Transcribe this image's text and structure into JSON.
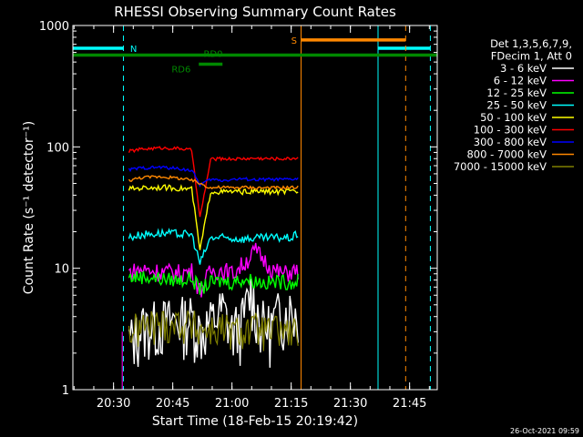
{
  "chart_data": {
    "type": "line",
    "title": "RHESSI Observing Summary Count Rates",
    "xlabel": "Start Time (18-Feb-15 20:19:42)",
    "ylabel": "Count Rate (s⁻¹ detector⁻¹)",
    "y_scale": "log",
    "ylim": [
      1,
      1000
    ],
    "xlim": [
      20.3283,
      21.8667
    ],
    "x_ticks": [
      {
        "x": 20.5,
        "label": "20:30"
      },
      {
        "x": 20.75,
        "label": "20:45"
      },
      {
        "x": 21.0,
        "label": "21:00"
      },
      {
        "x": 21.25,
        "label": "21:15"
      },
      {
        "x": 21.5,
        "label": "21:30"
      },
      {
        "x": 21.75,
        "label": "21:45"
      }
    ],
    "y_ticks": [
      {
        "y": 1,
        "label": "1"
      },
      {
        "y": 10,
        "label": "10"
      },
      {
        "y": 100,
        "label": "100"
      },
      {
        "y": 1000,
        "label": "1000"
      }
    ],
    "legend_header": [
      "Det 1,3,5,6,7,9,",
      "FDecim 1, Att 0"
    ],
    "legend_placement": "right",
    "series": [
      {
        "name": "3 - 6 keV",
        "color": "#ffffff",
        "segments": [
          {
            "x": [
              20.565,
              20.62,
              20.7,
              20.78,
              20.83,
              20.865,
              20.91,
              20.96,
              21.0,
              21.04,
              21.08,
              21.12,
              21.16,
              21.2,
              21.25,
              21.285
            ],
            "y": [
              2.5,
              3.3,
              3.6,
              3.8,
              3.9,
              3.1,
              3.6,
              4.6,
              3.1,
              3.5,
              6.5,
              3.6,
              3.3,
              4.3,
              4.6,
              4.2
            ]
          }
        ]
      },
      {
        "name": "6 - 12 keV",
        "color": "#ff00ff",
        "segments": [
          {
            "x": [
              20.565,
              20.62,
              20.7,
              20.78,
              20.83,
              20.865,
              20.91,
              20.96,
              21.0,
              21.05,
              21.1,
              21.14,
              21.18,
              21.22,
              21.25,
              21.285
            ],
            "y": [
              9.3,
              9.8,
              9.4,
              9.2,
              9.5,
              6.6,
              9.5,
              9.8,
              9.0,
              11.0,
              14.0,
              11.5,
              9.5,
              9.0,
              9.5,
              9.3
            ]
          }
        ]
      },
      {
        "name": "12 - 25 keV",
        "color": "#00ff00",
        "segments": [
          {
            "x": [
              20.565,
              20.62,
              20.7,
              20.78,
              20.83,
              20.865,
              20.91,
              20.96,
              21.0,
              21.05,
              21.1,
              21.15,
              21.2,
              21.25,
              21.285
            ],
            "y": [
              8.4,
              8.6,
              8.2,
              8.0,
              8.3,
              6.8,
              7.6,
              7.9,
              7.7,
              8.2,
              7.9,
              7.6,
              7.8,
              7.7,
              7.9
            ]
          }
        ]
      },
      {
        "name": "25 - 50 keV",
        "color": "#00ffff",
        "segments": [
          {
            "x": [
              20.565,
              20.62,
              20.7,
              20.78,
              20.83,
              20.865,
              20.91,
              20.96,
              21.0,
              21.05,
              21.1,
              21.15,
              21.2,
              21.25,
              21.285
            ],
            "y": [
              18.0,
              19.0,
              19.5,
              19.2,
              19.0,
              11.0,
              17.8,
              17.8,
              17.6,
              17.5,
              17.7,
              17.8,
              17.9,
              17.8,
              19.5
            ]
          }
        ]
      },
      {
        "name": "50 - 100 keV",
        "color": "#ffff00",
        "segments": [
          {
            "x": [
              20.565,
              20.62,
              20.7,
              20.78,
              20.83,
              20.865,
              20.91,
              20.96,
              21.0,
              21.05,
              21.1,
              21.15,
              21.2,
              21.25,
              21.285
            ],
            "y": [
              45.0,
              46.0,
              46.5,
              45.5,
              45.0,
              14.0,
              43.0,
              42.5,
              42.8,
              42.6,
              43.0,
              42.8,
              42.7,
              42.8,
              43.0
            ]
          }
        ]
      },
      {
        "name": "100 - 300 keV",
        "color": "#ff0000",
        "segments": [
          {
            "x": [
              20.565,
              20.62,
              20.7,
              20.78,
              20.83,
              20.865,
              20.91,
              20.96,
              21.0,
              21.05,
              21.1,
              21.15,
              21.2,
              21.25,
              21.285
            ],
            "y": [
              92.0,
              96.0,
              98.0,
              97.0,
              94.0,
              26.0,
              79.0,
              80.0,
              79.5,
              80.0,
              80.5,
              80.0,
              79.8,
              80.2,
              82.0
            ]
          }
        ]
      },
      {
        "name": "300 - 800 keV",
        "color": "#0000ff",
        "segments": [
          {
            "x": [
              20.565,
              20.62,
              20.7,
              20.78,
              20.83,
              20.865,
              20.91,
              20.96,
              21.0,
              21.05,
              21.1,
              21.15,
              21.2,
              21.25,
              21.285
            ],
            "y": [
              65.0,
              67.0,
              68.0,
              66.0,
              64.0,
              49.0,
              54.0,
              53.0,
              54.0,
              54.5,
              53.5,
              54.0,
              53.8,
              54.0,
              55.0
            ]
          }
        ]
      },
      {
        "name": "800 - 7000 keV",
        "color": "#ff8800",
        "segments": [
          {
            "x": [
              20.565,
              20.62,
              20.7,
              20.78,
              20.83,
              20.865,
              20.91,
              20.96,
              21.0,
              21.05,
              21.1,
              21.15,
              21.2,
              21.25,
              21.285
            ],
            "y": [
              53.0,
              56.0,
              57.0,
              55.0,
              53.0,
              50.0,
              46.0,
              46.5,
              46.0,
              46.5,
              46.0,
              46.2,
              46.0,
              46.3,
              46.5
            ]
          }
        ]
      },
      {
        "name": "7000 - 15000 keV",
        "color": "#808000",
        "segments": [
          {
            "x": [
              20.565,
              20.62,
              20.7,
              20.78,
              20.83,
              20.865,
              20.91,
              20.96,
              21.0,
              21.05,
              21.1,
              21.15,
              21.2,
              21.25,
              21.285
            ],
            "y": [
              3.0,
              3.3,
              3.5,
              3.6,
              3.4,
              3.2,
              3.1,
              3.2,
              3.0,
              3.1,
              3.2,
              3.0,
              3.1,
              3.0,
              3.1
            ]
          }
        ]
      }
    ],
    "flags": [
      {
        "label": "N",
        "color": "#00ffff",
        "y": 650,
        "segments": [
          [
            20.3283,
            20.5417
          ],
          [
            21.6167,
            21.8375
          ]
        ],
        "boundaries_solid": [
          20.3283,
          21.6167
        ],
        "boundaries_dashed": [
          20.5417,
          21.8375
        ],
        "label_x": 20.57
      },
      {
        "label": "S",
        "color": "#ff8800",
        "y": 760,
        "segments": [
          [
            21.2917,
            21.7333
          ]
        ],
        "boundaries_solid": [
          21.2917
        ],
        "boundaries_dashed": [
          21.7333
        ],
        "label_x": 21.25
      },
      {
        "label": "RD0",
        "color": "#008800",
        "y": 570,
        "segments": [
          [
            20.3283,
            21.8667
          ]
        ],
        "label_x": 20.88,
        "label_y": 590
      },
      {
        "label": "RD6",
        "color": "#008800",
        "y": 480,
        "segments": [
          [
            20.86,
            20.96
          ]
        ],
        "label_x": 20.745,
        "label_y": 440
      }
    ]
  },
  "timestamp": "26-Oct-2021 09:59"
}
